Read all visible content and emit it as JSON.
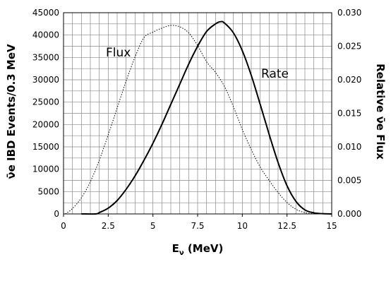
{
  "chart_data": {
    "type": "line",
    "xlabel": "E",
    "xlabel_sub": "ν",
    "xlabel_unit": " (MeV)",
    "ylabel_left": "ν̄e IBD Events/0.3 MeV",
    "ylabel_right": "Relative ν̄e Flux",
    "xlim": [
      0,
      15
    ],
    "ylim_left": [
      0,
      45000
    ],
    "ylim_right": [
      0,
      0.03
    ],
    "x_ticks": [
      "0",
      "2.5",
      "5",
      "7.5",
      "10",
      "12.5",
      "15"
    ],
    "y_left_ticks": [
      "0",
      "5000",
      "10000",
      "15000",
      "20000",
      "25000",
      "30000",
      "35000",
      "40000",
      "45000"
    ],
    "y_right_ticks": [
      "0.000",
      "0.005",
      "0.010",
      "0.015",
      "0.020",
      "0.025",
      "0.030"
    ],
    "grid": true,
    "series": [
      {
        "name": "Flux",
        "style": "dotted",
        "axis": "right",
        "x": [
          0.1,
          0.5,
          1,
          1.5,
          2,
          2.5,
          3,
          3.5,
          4,
          4.5,
          5,
          5.5,
          6,
          6.5,
          7,
          7.5,
          8,
          8.5,
          9,
          9.5,
          10,
          10.5,
          11,
          11.5,
          12,
          12.5,
          13,
          13.5,
          14
        ],
        "y": [
          0.0,
          0.0008,
          0.0024,
          0.0048,
          0.008,
          0.0118,
          0.0158,
          0.0198,
          0.0234,
          0.0263,
          0.0271,
          0.0277,
          0.0281,
          0.0279,
          0.027,
          0.0251,
          0.0227,
          0.0211,
          0.019,
          0.016,
          0.0126,
          0.0096,
          0.007,
          0.005,
          0.0032,
          0.0017,
          0.0007,
          0.0002,
          0.0
        ]
      },
      {
        "name": "Rate",
        "style": "solid",
        "axis": "left",
        "x": [
          1.0,
          1.8,
          2.0,
          2.5,
          3,
          3.5,
          4,
          4.5,
          5,
          5.5,
          6,
          6.5,
          7,
          7.5,
          8,
          8.5,
          8.8,
          9,
          9.5,
          10,
          10.5,
          11,
          11.5,
          12,
          12.5,
          13,
          13.5,
          14,
          14.5,
          15
        ],
        "y": [
          0,
          0,
          300,
          1300,
          3000,
          5500,
          8500,
          12000,
          15800,
          20000,
          24500,
          29000,
          33500,
          37500,
          40800,
          42500,
          43000,
          42700,
          40500,
          36500,
          31000,
          24500,
          17800,
          11500,
          6300,
          2800,
          900,
          250,
          50,
          0
        ]
      }
    ]
  }
}
